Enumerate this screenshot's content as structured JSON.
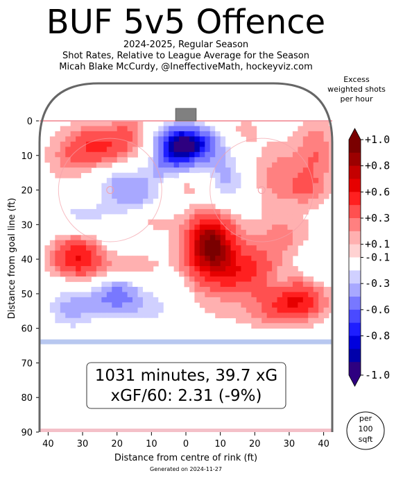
{
  "title": "BUF 5v5 Offence",
  "subtitle_lines": [
    "2024-2025, Regular Season",
    "Shot Rates, Relative to League Average for the Season",
    "Micah Blake McCurdy, @IneffectiveMath, hockeyviz.com"
  ],
  "footer": "Generated on 2024-11-27",
  "colorbar": {
    "title": "Excess weighted shots per hour",
    "tick_labels": [
      "+1.0",
      "+0.8",
      "+0.6",
      "+0.3",
      "+0.1",
      "-0.1",
      "-0.3",
      "-0.6",
      "-0.8",
      "-1.0"
    ],
    "colors": [
      "#7a0000",
      "#9c0000",
      "#c40000",
      "#e60000",
      "#ff2020",
      "#ff5050",
      "#ff8080",
      "#ffb0b0",
      "#ffd2d2",
      "#ffffff",
      "#d0d0ff",
      "#a8a8ff",
      "#7878ff",
      "#4a4aff",
      "#1e1eff",
      "#0000dd",
      "#0000aa",
      "#2e0080"
    ]
  },
  "stats_box": {
    "line1": "1031 minutes, 39.7 xG",
    "line2": "xGF/60: 2.31 (-9%)"
  },
  "scale_badge": [
    "per",
    "100",
    "sqft"
  ],
  "colors": {
    "positive": "#ff4a4a",
    "negative": "#3a3aff",
    "rink": "#666666"
  },
  "chart_data": {
    "type": "heatmap",
    "xlabel": "Distance from centre of rink (ft)",
    "ylabel": "Distance from goal line (ft)",
    "xlim": [
      -42.5,
      42.5
    ],
    "ylim": [
      0,
      90
    ],
    "x_ticks": [
      40,
      30,
      20,
      10,
      0,
      10,
      20,
      30,
      40
    ],
    "x_tick_values": [
      -40,
      -30,
      -20,
      -10,
      0,
      10,
      20,
      30,
      40
    ],
    "y_ticks": [
      0,
      10,
      20,
      30,
      40,
      50,
      60,
      70,
      80,
      90
    ],
    "value_range": [
      -1.0,
      1.0
    ],
    "hotspots": [
      {
        "x": -22,
        "y": 8,
        "v": 0.35,
        "sx": 7,
        "sy": 4
      },
      {
        "x": -33,
        "y": 11,
        "v": 0.2,
        "sx": 6,
        "sy": 5
      },
      {
        "x": -16,
        "y": 2,
        "v": 0.2,
        "sx": 4,
        "sy": 3
      },
      {
        "x": -28,
        "y": 5,
        "v": 0.15,
        "sx": 6,
        "sy": 4
      },
      {
        "x": -19,
        "y": 18,
        "v": -0.3,
        "sx": 6,
        "sy": 4
      },
      {
        "x": -13,
        "y": 22,
        "v": -0.25,
        "sx": 6,
        "sy": 4
      },
      {
        "x": -30,
        "y": 27,
        "v": -0.22,
        "sx": 10,
        "sy": 3
      },
      {
        "x": -10,
        "y": 29,
        "v": 0.2,
        "sx": 5,
        "sy": 3
      },
      {
        "x": -2,
        "y": 7,
        "v": -1.0,
        "sx": 5,
        "sy": 4
      },
      {
        "x": 6,
        "y": 7,
        "v": -0.4,
        "sx": 5,
        "sy": 4
      },
      {
        "x": -5,
        "y": 14,
        "v": -0.3,
        "sx": 5,
        "sy": 3
      },
      {
        "x": 0,
        "y": 18,
        "v": 0.2,
        "sx": 5,
        "sy": 3
      },
      {
        "x": 12,
        "y": 17,
        "v": -0.35,
        "sx": 5,
        "sy": 5
      },
      {
        "x": 16,
        "y": 3,
        "v": 0.15,
        "sx": 4,
        "sy": 3
      },
      {
        "x": 27,
        "y": 16,
        "v": 0.25,
        "sx": 7,
        "sy": 7
      },
      {
        "x": 38,
        "y": 9,
        "v": 0.25,
        "sx": 4,
        "sy": 8
      },
      {
        "x": 35,
        "y": 20,
        "v": 0.15,
        "sx": 4,
        "sy": 3
      },
      {
        "x": 7,
        "y": 35,
        "v": 0.85,
        "sx": 5,
        "sy": 6
      },
      {
        "x": 11,
        "y": 44,
        "v": 0.35,
        "sx": 9,
        "sy": 6
      },
      {
        "x": 20,
        "y": 43,
        "v": 0.25,
        "sx": 7,
        "sy": 5
      },
      {
        "x": 28,
        "y": 33,
        "v": 0.2,
        "sx": 6,
        "sy": 4
      },
      {
        "x": 32,
        "y": 52,
        "v": 0.6,
        "sx": 6,
        "sy": 4
      },
      {
        "x": 22,
        "y": 56,
        "v": 0.15,
        "sx": 7,
        "sy": 3
      },
      {
        "x": 38,
        "y": 40,
        "v": -0.2,
        "sx": 3,
        "sy": 3
      },
      {
        "x": 27,
        "y": 47,
        "v": -0.15,
        "sx": 3,
        "sy": 3
      },
      {
        "x": -32,
        "y": 39,
        "v": 0.55,
        "sx": 5,
        "sy": 4
      },
      {
        "x": -25,
        "y": 44,
        "v": 0.2,
        "sx": 8,
        "sy": 4
      },
      {
        "x": -14,
        "y": 41,
        "v": 0.15,
        "sx": 5,
        "sy": 3
      },
      {
        "x": -20,
        "y": 50,
        "v": -0.55,
        "sx": 5,
        "sy": 4
      },
      {
        "x": -33,
        "y": 54,
        "v": -0.35,
        "sx": 6,
        "sy": 5
      },
      {
        "x": -8,
        "y": 55,
        "v": -0.25,
        "sx": 7,
        "sy": 4
      },
      {
        "x": -14,
        "y": 35,
        "v": -0.2,
        "sx": 4,
        "sy": 3
      },
      {
        "x": 0,
        "y": 56,
        "v": 0.12,
        "sx": 6,
        "sy": 3
      },
      {
        "x": -5,
        "y": 47,
        "v": -0.15,
        "sx": 4,
        "sy": 3
      }
    ]
  }
}
